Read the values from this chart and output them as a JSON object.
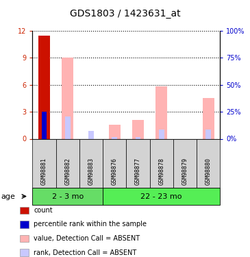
{
  "title": "GDS1803 / 1423631_at",
  "samples": [
    "GSM98881",
    "GSM98882",
    "GSM98883",
    "GSM98876",
    "GSM98877",
    "GSM98878",
    "GSM98879",
    "GSM98880"
  ],
  "groups": [
    {
      "label": "2 - 3 mo",
      "indices": [
        0,
        1,
        2
      ],
      "color": "#66dd66"
    },
    {
      "label": "22 - 23 mo",
      "indices": [
        3,
        4,
        5,
        6,
        7
      ],
      "color": "#55ee55"
    }
  ],
  "count_values": [
    11.5,
    0,
    0,
    0,
    0,
    0,
    0,
    0
  ],
  "percentile_rank_values": [
    3.0,
    0,
    0,
    0,
    0,
    0,
    0,
    0
  ],
  "absent_value_values": [
    0,
    9.0,
    0,
    1.6,
    2.1,
    5.8,
    0,
    4.5
  ],
  "absent_rank_values": [
    0,
    2.5,
    0.9,
    0.2,
    0.2,
    1.0,
    0,
    1.0
  ],
  "ylim_left": [
    0,
    12
  ],
  "ylim_right": [
    0,
    100
  ],
  "yticks_left": [
    0,
    3,
    6,
    9,
    12
  ],
  "yticks_right": [
    0,
    25,
    50,
    75,
    100
  ],
  "color_count": "#cc1100",
  "color_rank": "#0000cc",
  "color_absent_value": "#ffb3b3",
  "color_absent_rank": "#c8c8ff",
  "bar_width": 0.5,
  "grid_color": "black",
  "label_color_left": "#cc2200",
  "label_color_right": "#0000cc",
  "legend_items": [
    {
      "color": "#cc1100",
      "label": "count"
    },
    {
      "color": "#0000cc",
      "label": "percentile rank within the sample"
    },
    {
      "color": "#ffb3b3",
      "label": "value, Detection Call = ABSENT"
    },
    {
      "color": "#c8c8ff",
      "label": "rank, Detection Call = ABSENT"
    }
  ]
}
